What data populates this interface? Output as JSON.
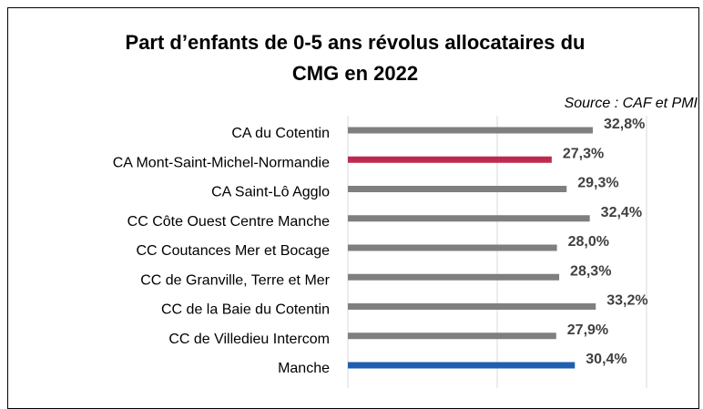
{
  "chart_data": {
    "type": "bar",
    "orientation": "horizontal",
    "title": [
      "Part d’enfants de 0-5 ans révolus allocataires du",
      "CMG en 2022"
    ],
    "subtitle": "Source : CAF et PMI",
    "categories": [
      "CA du Cotentin",
      "CA Mont-Saint-Michel-Normandie",
      "CA Saint-Lô Agglo",
      "CC Côte Ouest Centre Manche",
      "CC Coutances Mer et Bocage",
      "CC de Granville, Terre et Mer",
      "CC de la Baie du Cotentin",
      "CC de Villedieu Intercom",
      "Manche"
    ],
    "values": [
      32.8,
      27.3,
      29.3,
      32.4,
      28.0,
      28.3,
      33.2,
      27.9,
      30.4
    ],
    "value_labels": [
      "32,8%",
      "27,3%",
      "29,3%",
      "32,4%",
      "28,0%",
      "28,3%",
      "33,2%",
      "27,9%",
      "30,4%"
    ],
    "colors": [
      "#7f7f7f",
      "#c0294f",
      "#7f7f7f",
      "#7f7f7f",
      "#7f7f7f",
      "#7f7f7f",
      "#7f7f7f",
      "#7f7f7f",
      "#1f5fb0"
    ],
    "xlim": [
      0,
      40
    ],
    "xticks": [
      0,
      20,
      40
    ],
    "grid": true
  }
}
